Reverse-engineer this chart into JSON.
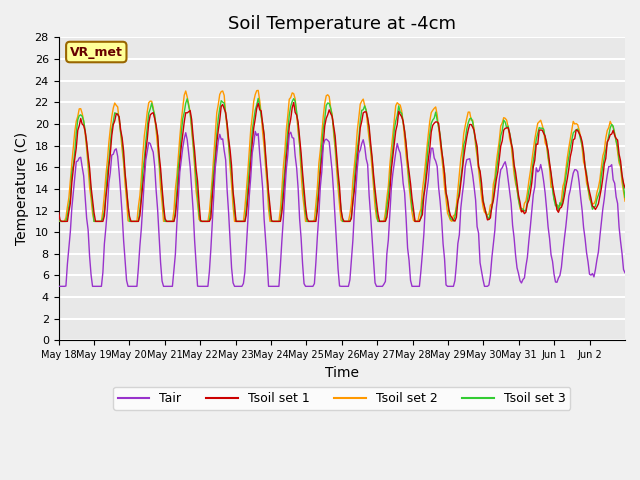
{
  "title": "Soil Temperature at -4cm",
  "xlabel": "Time",
  "ylabel": "Temperature (C)",
  "ylim": [
    0,
    28
  ],
  "yticks": [
    0,
    2,
    4,
    6,
    8,
    10,
    12,
    14,
    16,
    18,
    20,
    22,
    24,
    26,
    28
  ],
  "xtick_labels": [
    "May 18",
    "May 19",
    "May 20",
    "May 21",
    "May 22",
    "May 23",
    "May 24",
    "May 25",
    "May 26",
    "May 27",
    "May 28",
    "May 29",
    "May 30",
    "May 31",
    "Jun 1",
    "Jun 2"
  ],
  "colors": {
    "Tair": "#9933cc",
    "Tsoil_set1": "#cc0000",
    "Tsoil_set2": "#ff9900",
    "Tsoil_set3": "#33cc33"
  },
  "legend_labels": [
    "Tair",
    "Tsoil set 1",
    "Tsoil set 2",
    "Tsoil set 3"
  ],
  "annotation_text": "VR_met",
  "annotation_box_color": "#ffff99",
  "annotation_box_edge": "#996600",
  "plot_bg_color": "#e8e8e8",
  "fig_bg_color": "#f0f0f0",
  "grid_color": "white",
  "title_fontsize": 13,
  "axis_fontsize": 10,
  "tick_fontsize": 8,
  "n_days": 16
}
